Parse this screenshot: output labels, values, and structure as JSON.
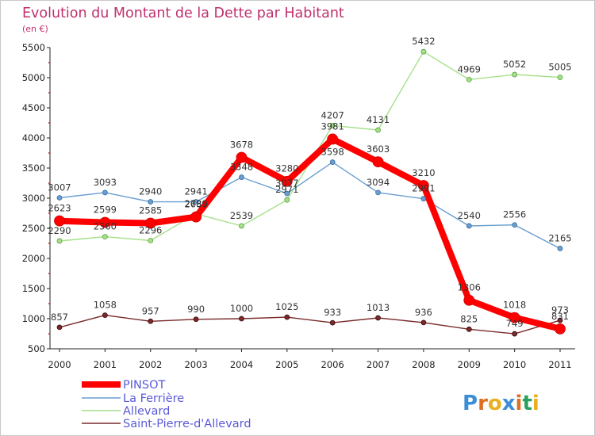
{
  "chart_data": {
    "type": "line",
    "title": "Evolution du Montant de la Dette par Habitant",
    "subtitle": "(en €)",
    "x": [
      "2000",
      "2001",
      "2002",
      "2003",
      "2004",
      "2005",
      "2006",
      "2007",
      "2008",
      "2009",
      "2010",
      "2011"
    ],
    "ylim": [
      500,
      5500
    ],
    "yticks": [
      500,
      1000,
      1500,
      2000,
      2500,
      3000,
      3500,
      4000,
      4500,
      5000,
      5500
    ],
    "grid": false,
    "legend_position": "bottom-left",
    "series": [
      {
        "name": "PINSOT",
        "color": "#ff0000",
        "values": [
          2623,
          2599,
          2585,
          2689,
          3678,
          3280,
          3981,
          3603,
          3210,
          1306,
          1018,
          831
        ]
      },
      {
        "name": "La Ferrière",
        "color": "#6a9ed0",
        "values": [
          3007,
          3093,
          2940,
          2941,
          3348,
          3077,
          3598,
          3094,
          2991,
          2540,
          2556,
          2165
        ]
      },
      {
        "name": "Allevard",
        "color": "#a6e08a",
        "values": [
          2290,
          2360,
          2296,
          2739,
          2539,
          2971,
          4207,
          4131,
          5432,
          4969,
          5052,
          5005
        ]
      },
      {
        "name": "Saint-Pierre-d'Allevard",
        "color": "#7a2a2a",
        "values": [
          857,
          1058,
          957,
          990,
          1000,
          1025,
          933,
          1013,
          936,
          825,
          749,
          973
        ]
      }
    ]
  },
  "logo": {
    "letters": [
      "P",
      "r",
      "o",
      "x",
      "i",
      "t",
      "i"
    ],
    "colors": [
      "#3c8fd6",
      "#e07020",
      "#e8b020",
      "#3c8fd6",
      "#e07020",
      "#2aa060",
      "#e8b020"
    ]
  }
}
